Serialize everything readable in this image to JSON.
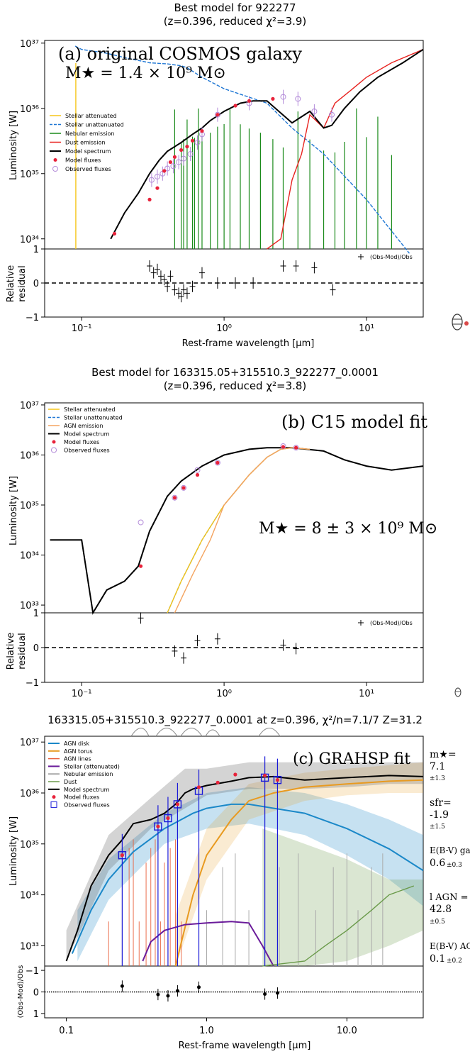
{
  "panel_a": {
    "title_1": "Best model for 922277",
    "title_2": "(z=0.396, reduced χ²=3.9)",
    "annotation": "(a) original COSMOS galaxy",
    "mass_label": "M★ = 1.4 × 10⁹ M⊙",
    "ylabel": "Luminosity [W]",
    "res_ylabel_1": "Relative",
    "res_ylabel_2": "residual",
    "xlabel": "Rest-frame wavelength [μm]",
    "legend": [
      "Stellar attenuated",
      "Stellar unattenuated",
      "Nebular emission",
      "Dust emission",
      "Model spectrum",
      "Model fluxes",
      "Observed fluxes"
    ],
    "res_legend": "(Obs-Mod)/Obs"
  },
  "panel_b": {
    "title_1": "Best model for 163315.05+315510.3_922277_0.0001",
    "title_2": "(z=0.396, reduced χ²=3.8)",
    "annotation": "(b) C15 model fit",
    "mass_label": "M★ = 8 ± 3 × 10⁹ M⊙",
    "ylabel": "Luminosity [W]",
    "res_ylabel_1": "Relative",
    "res_ylabel_2": "residual",
    "legend": [
      "Stellar attenuated",
      "Stellar unattenuated",
      "AGN emission",
      "Model spectrum",
      "Model fluxes",
      "Observed fluxes"
    ],
    "res_legend": "(Obs-Mod)/Obs"
  },
  "panel_c": {
    "title": "163315.05+315510.3_922277_0.0001 at z=0.396, χ²/n=7.1/7 Z=31.2",
    "annotation": "(c) GRAHSP fit",
    "ylabel": "Luminosity [W]",
    "res_ylabel": "(Obs-Mod)/Obs",
    "xlabel": "Rest-frame wavelength [μm]",
    "legend": [
      "AGN disk",
      "AGN torus",
      "AGN lines",
      "Stellar (attenuated)",
      "Nebular emission",
      "Dust",
      "Model spectrum",
      "Model fluxes",
      "Observed fluxes"
    ],
    "params": [
      {
        "name": "m★=",
        "value": "7.1",
        "err": "±1.3"
      },
      {
        "name": "sfr=",
        "value": "-1.9",
        "err": "±1.5"
      },
      {
        "name": "E(B-V) gal =",
        "value": "0.6",
        "err": "±0.3"
      },
      {
        "name": "l AGN =",
        "value": "42.8",
        "err": "±0.5"
      },
      {
        "name": "E(B-V) AGN =",
        "value": "0.1",
        "err": "±0.2"
      }
    ]
  },
  "colors": {
    "stellar_att": "#f5c518",
    "stellar_unatt": "#1f77d4",
    "nebular": "#1a8a1a",
    "dust": "#e8221f",
    "model": "#000000",
    "model_flux": "#e8223a",
    "obs": "#b38bd9",
    "agn": "#f4a460",
    "agn_disk": "#1b88c8",
    "agn_torus": "#e89a20",
    "agn_lines": "#e8603c",
    "stellar_c": "#6a1b9a",
    "nebular_c": "#aaaaaa",
    "dust_c": "#6a9a4a",
    "obs_c": "#1a1ad8"
  },
  "chart_data": [
    {
      "type": "line",
      "panel": "a",
      "title": "Best model for 922277 (z=0.396, reduced χ²=3.9)",
      "xlabel": "Rest-frame wavelength [μm]",
      "ylabel": "Luminosity [W]",
      "xscale": "log",
      "yscale": "log",
      "xlim": [
        0.055,
        25
      ],
      "ylim": [
        7e+33,
        1.1e+37
      ],
      "x_ticks": [
        "10⁻¹",
        "10⁰",
        "10¹"
      ],
      "y_ticks": [
        "10³⁴",
        "10³⁵",
        "10³⁶",
        "10³⁷"
      ],
      "legend_position": "left",
      "series": [
        {
          "name": "Model spectrum",
          "x": [
            0.16,
            0.2,
            0.25,
            0.3,
            0.35,
            0.4,
            0.5,
            0.6,
            0.7,
            0.8,
            1.0,
            1.3,
            1.6,
            2.0,
            3.0,
            4.0,
            5.0,
            5.7,
            7.0,
            9.0,
            12.0,
            18.0,
            25.0
          ],
          "y": [
            1e+34,
            2.5e+34,
            5e+34,
            1e+35,
            1.6e+35,
            2.2e+35,
            3e+35,
            4e+35,
            5e+35,
            6.5e+35,
            9e+35,
            1.2e+36,
            1.3e+36,
            1.3e+36,
            6e+35,
            9e+35,
            5e+35,
            5.5e+35,
            1e+36,
            1.8e+36,
            3e+36,
            5e+36,
            8e+36
          ]
        },
        {
          "name": "Stellar unattenuated",
          "x": [
            0.09,
            0.1,
            0.15,
            0.2,
            0.3,
            0.4,
            0.5,
            0.55,
            0.7,
            1.0,
            2.0,
            3.0,
            5.0,
            10.0,
            20.0
          ],
          "y": [
            9e+36,
            8e+36,
            7e+36,
            6e+36,
            5e+36,
            4.8e+36,
            4.5e+36,
            4.2e+36,
            3e+36,
            2e+36,
            1.2e+36,
            5e+35,
            2e+35,
            4e+34,
            6e+33
          ]
        },
        {
          "name": "Dust emission",
          "x": [
            2.0,
            2.5,
            3.0,
            3.5,
            4.0,
            5.0,
            6.0,
            8.0,
            10.0,
            15.0,
            25.0
          ],
          "y": [
            7e+33,
            1e+34,
            8e+34,
            2e+35,
            8e+35,
            5e+35,
            1.2e+36,
            2e+36,
            3e+36,
            5e+36,
            8e+36
          ]
        },
        {
          "name": "Model fluxes",
          "x": [
            0.17,
            0.3,
            0.34,
            0.38,
            0.42,
            0.45,
            0.5,
            0.55,
            0.6,
            0.7,
            0.9,
            1.2,
            1.5,
            2.2
          ],
          "y": [
            1.2e+34,
            4e+34,
            6e+34,
            1.1e+35,
            1.5e+35,
            1.8e+35,
            2.3e+35,
            2.6e+35,
            3.2e+35,
            4.5e+35,
            8e+35,
            1.1e+36,
            1.3e+36,
            1.4e+36
          ]
        },
        {
          "name": "Observed fluxes",
          "x": [
            0.31,
            0.34,
            0.37,
            0.4,
            0.44,
            0.48,
            0.52,
            0.58,
            0.65,
            0.7,
            0.9,
            1.5,
            2.6,
            3.3,
            4.3,
            5.7
          ],
          "y": [
            8e+34,
            9e+34,
            1e+35,
            1.2e+35,
            1.3e+35,
            1.5e+35,
            1.7e+35,
            2e+35,
            3e+35,
            4e+35,
            8e+35,
            1.2e+36,
            1.5e+36,
            1.4e+36,
            9e+35,
            8e+35
          ]
        }
      ],
      "residuals": {
        "x": [
          0.3,
          0.32,
          0.34,
          0.36,
          0.38,
          0.4,
          0.42,
          0.45,
          0.48,
          0.5,
          0.52,
          0.55,
          0.6,
          0.7,
          0.9,
          1.2,
          1.6,
          2.6,
          3.2,
          4.3,
          5.8
        ],
        "y": [
          0.5,
          0.3,
          0.4,
          0.2,
          0.1,
          -0.1,
          0.2,
          -0.2,
          -0.3,
          -0.4,
          -0.2,
          -0.3,
          -0.1,
          0.3,
          0.0,
          0.0,
          0.0,
          0.5,
          0.5,
          0.45,
          -0.2
        ],
        "ylim": [
          -1,
          1
        ]
      }
    },
    {
      "type": "line",
      "panel": "b",
      "title": "Best model for 163315.05+315510.3_922277_0.0001 (z=0.396, reduced χ²=3.8)",
      "ylabel": "Luminosity [W]",
      "xscale": "log",
      "yscale": "log",
      "xlim": [
        0.055,
        25
      ],
      "ylim": [
        7e+32,
        1.1e+37
      ],
      "x_ticks": [
        "10⁻¹",
        "10⁰",
        "10¹"
      ],
      "y_ticks": [
        "10³³",
        "10³⁴",
        "10³⁵",
        "10³⁶",
        "10³⁷"
      ],
      "legend_position": "top-left",
      "series": [
        {
          "name": "Stellar unattenuated",
          "x": [
            0.06,
            0.08,
            0.09,
            0.1,
            0.12,
            0.15,
            0.2,
            0.25,
            0.3,
            0.4,
            0.5,
            0.6,
            0.8,
            1.0,
            1.5,
            2.0,
            2.5,
            3.0,
            5.0,
            10.0,
            20.0
          ],
          "y": [
            2e+34,
            2e+34,
            1e+34,
            1.5e+35,
            1.4e+35,
            1.2e+35,
            1e+35,
            7e+34,
            2e+35,
            3e+35,
            5e+35,
            7e+35,
            8e+35,
            1e+36,
            1e+36,
            9e+35,
            5e+35,
            4e+35,
            1.5e+35,
            2e+34,
            1.5e+33
          ]
        },
        {
          "name": "AGN emission",
          "x": [
            0.4,
            0.5,
            0.7,
            1.0,
            1.5,
            2.0,
            2.5,
            3.0,
            4.0
          ],
          "y": [
            7e+32,
            3e+33,
            2e+34,
            1e+35,
            4e+35,
            9e+35,
            1.3e+36,
            1.4e+36,
            1.3e+36
          ]
        },
        {
          "name": "Model spectrum",
          "x": [
            0.06,
            0.1,
            0.12,
            0.15,
            0.2,
            0.25,
            0.3,
            0.4,
            0.5,
            0.7,
            1.0,
            1.5,
            2.0,
            3.0,
            5.0,
            7.0,
            10.0,
            15.0,
            25.0
          ],
          "y": [
            2e+34,
            2e+34,
            7e+32,
            2e+33,
            3e+33,
            6e+33,
            3e+34,
            1.5e+35,
            3e+35,
            6e+35,
            1e+36,
            1.3e+36,
            1.4e+36,
            1.4e+36,
            1.2e+36,
            8e+35,
            6e+35,
            5e+35,
            6e+35
          ]
        },
        {
          "name": "Model fluxes",
          "x": [
            0.26,
            0.45,
            0.52,
            0.65,
            0.9,
            2.6,
            3.2
          ],
          "y": [
            6e+33,
            1.4e+35,
            2.2e+35,
            4e+35,
            7e+35,
            1.45e+36,
            1.4e+36
          ]
        },
        {
          "name": "Observed fluxes",
          "x": [
            0.26,
            0.45,
            0.52,
            0.65,
            0.9,
            2.6,
            3.2
          ],
          "y": [
            4.5e+34,
            1.4e+35,
            2.2e+35,
            5e+35,
            7e+35,
            1.5e+36,
            1.4e+36
          ]
        }
      ],
      "residuals": {
        "x": [
          0.26,
          0.45,
          0.52,
          0.65,
          0.9,
          2.6,
          3.2
        ],
        "y": [
          0.85,
          -0.1,
          -0.3,
          0.2,
          0.25,
          0.07,
          -0.03
        ],
        "ylim": [
          -1,
          1
        ]
      }
    },
    {
      "type": "line",
      "panel": "c",
      "title": "163315.05+315510.3_922277_0.0001 at z=0.396, χ²/n=7.1/7 Z=31.2",
      "xlabel": "Rest-frame wavelength [μm]",
      "ylabel": "Luminosity [W]",
      "xscale": "log",
      "yscale": "log",
      "xlim": [
        0.07,
        35
      ],
      "ylim": [
        4e+32,
        1.3e+37
      ],
      "x_ticks": [
        "0.1",
        "1.0",
        "10.0"
      ],
      "y_ticks": [
        "10³³",
        "10³⁴",
        "10³⁵",
        "10³⁶",
        "10³⁷"
      ],
      "legend_position": "top-left",
      "series": [
        {
          "name": "AGN disk",
          "x": [
            0.11,
            0.15,
            0.2,
            0.3,
            0.5,
            0.8,
            1.0,
            1.5,
            2.0,
            5.0,
            10.0,
            20.0,
            35.0
          ],
          "y": [
            7e+32,
            5e+33,
            2e+34,
            7e+34,
            2e+35,
            4e+35,
            5e+35,
            6e+35,
            6e+35,
            4e+35,
            2e+35,
            8e+34,
            3e+34
          ]
        },
        {
          "name": "AGN torus",
          "x": [
            0.6,
            0.8,
            1.0,
            1.5,
            2.0,
            3.0,
            5.0,
            10.0,
            20.0,
            35.0
          ],
          "y": [
            4e+32,
            1e+34,
            6e+34,
            3e+35,
            7e+35,
            1e+36,
            1.3e+36,
            1.5e+36,
            1.7e+36,
            1.8e+36
          ]
        },
        {
          "name": "Stellar (attenuated)",
          "x": [
            0.35,
            0.4,
            0.5,
            0.7,
            1.0,
            1.5,
            2.0,
            2.5,
            3.0
          ],
          "y": [
            5e+32,
            1.2e+33,
            2e+33,
            2.6e+33,
            2.8e+33,
            3e+33,
            2.8e+33,
            1e+33,
            4e+32
          ]
        },
        {
          "name": "Dust",
          "x": [
            2.5,
            5.0,
            7.0,
            10.0,
            15.0,
            20.0,
            30.0
          ],
          "y": [
            4e+32,
            5e+32,
            1e+33,
            2e+33,
            5e+33,
            1e+34,
            1.5e+34
          ]
        },
        {
          "name": "Model spectrum",
          "x": [
            0.1,
            0.12,
            0.15,
            0.2,
            0.25,
            0.3,
            0.4,
            0.5,
            0.6,
            0.7,
            0.8,
            1.0,
            1.5,
            2.0,
            3.0,
            5.0,
            10.0,
            20.0,
            35.0
          ],
          "y": [
            5e+32,
            2e+33,
            1.5e+34,
            6e+34,
            1.2e+35,
            2.5e+35,
            3e+35,
            4e+35,
            6e+35,
            1e+36,
            1.2e+36,
            1.4e+36,
            1.7e+36,
            2e+36,
            2.1e+36,
            1.8e+36,
            2e+36,
            2.2e+36,
            2.1e+36
          ]
        },
        {
          "name": "Model fluxes",
          "x": [
            0.25,
            0.45,
            0.53,
            0.62,
            0.88,
            1.2,
            1.6,
            2.6,
            3.2
          ],
          "y": [
            6e+34,
            2.2e+35,
            3.2e+35,
            6e+35,
            1.3e+36,
            1.6e+36,
            2.3e+36,
            2.2e+36,
            1.8e+36
          ]
        },
        {
          "name": "Observed fluxes",
          "x": [
            0.25,
            0.45,
            0.53,
            0.62,
            0.88,
            2.6,
            3.2
          ],
          "y": [
            6e+34,
            2.2e+35,
            3.2e+35,
            6e+35,
            1.1e+36,
            2e+36,
            1.8e+36
          ]
        }
      ],
      "residuals": {
        "x": [
          0.25,
          0.45,
          0.53,
          0.62,
          0.88,
          2.6,
          3.2
        ],
        "y": [
          0.27,
          -0.12,
          -0.18,
          0.05,
          0.22,
          -0.1,
          -0.05
        ],
        "ylim": [
          -1.2,
          1.2
        ],
        "y_ticks": [
          "−1",
          "0",
          "1"
        ]
      }
    }
  ]
}
